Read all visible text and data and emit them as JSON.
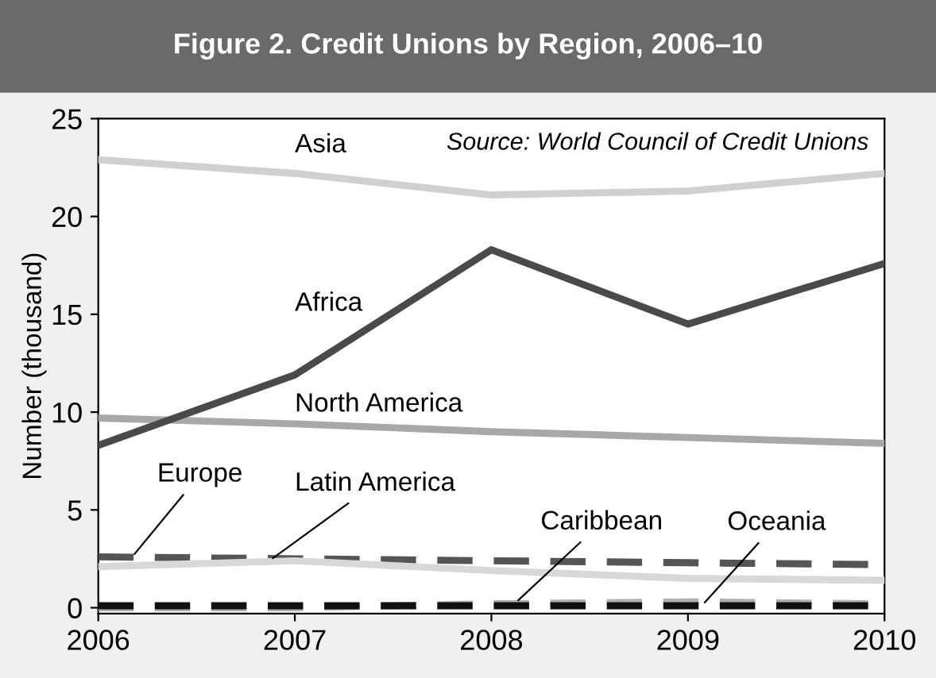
{
  "chart_data": {
    "type": "line",
    "title": "Figure 2. Credit Unions by Region, 2006–10",
    "ylabel": "Number (thousand)",
    "annotations": [
      "Source: World Council of Credit Unions"
    ],
    "x": [
      2006,
      2007,
      2008,
      2009,
      2010
    ],
    "xlim": [
      2006,
      2010
    ],
    "xticks": [
      2006,
      2007,
      2008,
      2009,
      2010
    ],
    "ylim": [
      -0.3,
      25
    ],
    "yticks": [
      0,
      5,
      10,
      15,
      20,
      25
    ],
    "grid": false,
    "marker": "none",
    "series": [
      {
        "name": "Asia",
        "color": "#d0d0d0",
        "line_style": "solid",
        "values": [
          22.9,
          22.2,
          21.1,
          21.3,
          22.2
        ]
      },
      {
        "name": "Africa",
        "color": "#4a4a4a",
        "line_style": "solid",
        "values": [
          8.3,
          11.9,
          18.3,
          14.5,
          17.6
        ]
      },
      {
        "name": "North America",
        "color": "#a8a8a8",
        "line_style": "solid",
        "values": [
          9.7,
          9.4,
          9.0,
          8.7,
          8.4
        ]
      },
      {
        "name": "Europe",
        "color": "#555555",
        "line_style": "dashed",
        "values": [
          2.6,
          2.5,
          2.4,
          2.3,
          2.2
        ]
      },
      {
        "name": "Latin America",
        "color": "#d8d8d8",
        "line_style": "solid",
        "values": [
          2.1,
          2.4,
          1.9,
          1.5,
          1.4
        ]
      },
      {
        "name": "Caribbean",
        "color": "#b0b0b0",
        "line_style": "dashed",
        "values": [
          0.0,
          0.0,
          0.2,
          0.3,
          0.2
        ]
      },
      {
        "name": "Oceania",
        "color": "#111111",
        "line_style": "dashed",
        "values": [
          0.1,
          0.1,
          0.1,
          0.1,
          0.1
        ]
      }
    ]
  }
}
